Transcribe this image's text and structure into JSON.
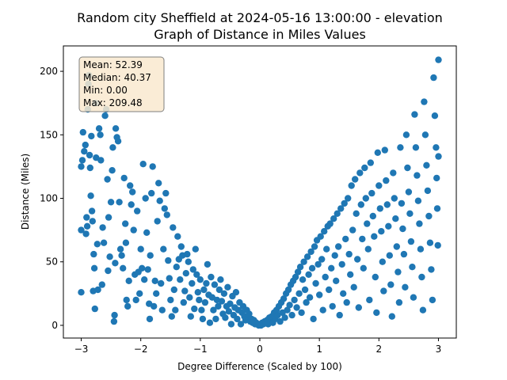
{
  "chart_data": {
    "type": "scatter",
    "title": "Random city Sheffield at 2024-05-16 13:00:00  - elevation",
    "subtitle": "Graph of Distance in Miles Values",
    "xlabel": "Degree Difference (Scaled by 100)",
    "ylabel": "Distance (Miles)",
    "xlim": [
      -3.3,
      3.3
    ],
    "ylim": [
      -10,
      220
    ],
    "xticks": [
      -3,
      -2,
      -1,
      0,
      1,
      2,
      3
    ],
    "yticks": [
      0,
      50,
      100,
      150,
      200
    ],
    "grid": false,
    "marker_color": "#1f77b4",
    "stats_box": {
      "mean": "Mean: 52.39",
      "median": "Median: 40.37",
      "min": "Min: 0.00",
      "max": "Max: 209.48"
    },
    "stats_box_colors": {
      "fill": "#f9e9cf",
      "edge": "#7f7f7f"
    },
    "points": [
      [
        -3.0,
        26
      ],
      [
        -3.0,
        75
      ],
      [
        -3.0,
        125
      ],
      [
        -2.98,
        130
      ],
      [
        -2.97,
        152
      ],
      [
        -2.95,
        137
      ],
      [
        -2.93,
        142
      ],
      [
        -2.92,
        72
      ],
      [
        -2.91,
        85
      ],
      [
        -2.9,
        78
      ],
      [
        -2.89,
        170
      ],
      [
        -2.88,
        190
      ],
      [
        -2.87,
        197
      ],
      [
        -2.86,
        134
      ],
      [
        -2.85,
        124
      ],
      [
        -2.84,
        102
      ],
      [
        -2.83,
        149
      ],
      [
        -2.82,
        90
      ],
      [
        -2.81,
        82
      ],
      [
        -2.8,
        27
      ],
      [
        -2.79,
        56
      ],
      [
        -2.78,
        45
      ],
      [
        -2.77,
        13
      ],
      [
        -2.76,
        175
      ],
      [
        -2.75,
        132
      ],
      [
        -2.73,
        64
      ],
      [
        -2.72,
        28
      ],
      [
        -2.7,
        155
      ],
      [
        -2.68,
        150
      ],
      [
        -2.67,
        130
      ],
      [
        -2.65,
        32
      ],
      [
        -2.64,
        77
      ],
      [
        -2.62,
        65
      ],
      [
        -2.6,
        165
      ],
      [
        -2.58,
        170
      ],
      [
        -2.56,
        115
      ],
      [
        -2.55,
        43
      ],
      [
        -2.54,
        85
      ],
      [
        -2.52,
        54
      ],
      [
        -2.5,
        97
      ],
      [
        -2.48,
        122
      ],
      [
        -2.47,
        140
      ],
      [
        -2.45,
        3
      ],
      [
        -2.44,
        8
      ],
      [
        -2.43,
        49
      ],
      [
        -2.42,
        155
      ],
      [
        -2.4,
        148
      ],
      [
        -2.38,
        145
      ],
      [
        -2.36,
        97
      ],
      [
        -2.34,
        60
      ],
      [
        -2.32,
        55
      ],
      [
        -2.3,
        45
      ],
      [
        -2.28,
        116
      ],
      [
        -2.26,
        80
      ],
      [
        -2.25,
        65
      ],
      [
        -2.24,
        20
      ],
      [
        -2.22,
        15
      ],
      [
        -2.2,
        35
      ],
      [
        -2.18,
        110
      ],
      [
        -2.16,
        95
      ],
      [
        -2.14,
        105
      ],
      [
        -2.12,
        75
      ],
      [
        -2.1,
        40
      ],
      [
        -2.08,
        20
      ],
      [
        -2.06,
        90
      ],
      [
        -2.04,
        42
      ],
      [
        -2.02,
        25
      ],
      [
        -2.0,
        60
      ],
      [
        -1.98,
        45
      ],
      [
        -1.96,
        127
      ],
      [
        -1.94,
        36
      ],
      [
        -1.92,
        100
      ],
      [
        -1.9,
        73
      ],
      [
        -1.88,
        44
      ],
      [
        -1.86,
        17
      ],
      [
        -1.85,
        5
      ],
      [
        -1.84,
        55
      ],
      [
        -1.82,
        104
      ],
      [
        -1.8,
        125
      ],
      [
        -1.78,
        15
      ],
      [
        -1.76,
        35
      ],
      [
        -1.74,
        25
      ],
      [
        -1.72,
        82
      ],
      [
        -1.7,
        112
      ],
      [
        -1.68,
        98
      ],
      [
        -1.66,
        33
      ],
      [
        -1.64,
        12
      ],
      [
        -1.62,
        60
      ],
      [
        -1.6,
        92
      ],
      [
        -1.58,
        104
      ],
      [
        -1.56,
        87
      ],
      [
        -1.54,
        51
      ],
      [
        -1.52,
        37
      ],
      [
        -1.5,
        20
      ],
      [
        -1.48,
        7
      ],
      [
        -1.46,
        77
      ],
      [
        -1.44,
        28
      ],
      [
        -1.42,
        12
      ],
      [
        -1.4,
        46
      ],
      [
        -1.38,
        70
      ],
      [
        -1.36,
        52
      ],
      [
        -1.34,
        36
      ],
      [
        -1.32,
        62
      ],
      [
        -1.3,
        55
      ],
      [
        -1.28,
        18
      ],
      [
        -1.26,
        27
      ],
      [
        -1.24,
        41
      ],
      [
        -1.22,
        56
      ],
      [
        -1.2,
        50
      ],
      [
        -1.18,
        22
      ],
      [
        -1.16,
        7
      ],
      [
        -1.14,
        33
      ],
      [
        -1.12,
        44
      ],
      [
        -1.1,
        13
      ],
      [
        -1.08,
        60
      ],
      [
        -1.06,
        40
      ],
      [
        -1.04,
        26
      ],
      [
        -1.02,
        20
      ],
      [
        -1.0,
        36
      ],
      [
        -0.98,
        12
      ],
      [
        -0.96,
        5
      ],
      [
        -0.94,
        28
      ],
      [
        -0.92,
        18
      ],
      [
        -0.9,
        33
      ],
      [
        -0.88,
        48
      ],
      [
        -0.86,
        24
      ],
      [
        -0.84,
        2
      ],
      [
        -0.82,
        38
      ],
      [
        -0.8,
        22
      ],
      [
        -0.78,
        12
      ],
      [
        -0.76,
        32
      ],
      [
        -0.74,
        5
      ],
      [
        -0.72,
        20
      ],
      [
        -0.7,
        15
      ],
      [
        -0.68,
        28
      ],
      [
        -0.66,
        36
      ],
      [
        -0.64,
        19
      ],
      [
        -0.62,
        9
      ],
      [
        -0.6,
        25
      ],
      [
        -0.58,
        6
      ],
      [
        -0.56,
        15
      ],
      [
        -0.54,
        30
      ],
      [
        -0.52,
        11
      ],
      [
        -0.5,
        17
      ],
      [
        -0.48,
        1
      ],
      [
        -0.46,
        23
      ],
      [
        -0.44,
        8
      ],
      [
        -0.42,
        14
      ],
      [
        -0.4,
        26
      ],
      [
        -0.38,
        5
      ],
      [
        -0.36,
        12
      ],
      [
        -0.34,
        18
      ],
      [
        -0.32,
        1
      ],
      [
        -0.3,
        10
      ],
      [
        -0.28,
        15
      ],
      [
        -0.26,
        7
      ],
      [
        -0.24,
        4
      ],
      [
        -0.22,
        12
      ],
      [
        -0.2,
        6
      ],
      [
        -0.18,
        9
      ],
      [
        -0.16,
        3
      ],
      [
        -0.14,
        5
      ],
      [
        -0.12,
        2
      ],
      [
        -0.1,
        4
      ],
      [
        -0.08,
        1
      ],
      [
        -0.06,
        2
      ],
      [
        -0.04,
        1
      ],
      [
        -0.02,
        0
      ],
      [
        0.0,
        1
      ],
      [
        0.02,
        0
      ],
      [
        0.04,
        2
      ],
      [
        0.06,
        1
      ],
      [
        0.08,
        3
      ],
      [
        0.1,
        2
      ],
      [
        0.12,
        4
      ],
      [
        0.14,
        1
      ],
      [
        0.16,
        6
      ],
      [
        0.18,
        3
      ],
      [
        0.2,
        7
      ],
      [
        0.22,
        2
      ],
      [
        0.24,
        10
      ],
      [
        0.26,
        5
      ],
      [
        0.28,
        12
      ],
      [
        0.3,
        8
      ],
      [
        0.32,
        15
      ],
      [
        0.34,
        3
      ],
      [
        0.36,
        18
      ],
      [
        0.38,
        10
      ],
      [
        0.4,
        21
      ],
      [
        0.42,
        6
      ],
      [
        0.44,
        25
      ],
      [
        0.46,
        12
      ],
      [
        0.48,
        28
      ],
      [
        0.5,
        16
      ],
      [
        0.52,
        32
      ],
      [
        0.54,
        8
      ],
      [
        0.56,
        35
      ],
      [
        0.58,
        20
      ],
      [
        0.6,
        38
      ],
      [
        0.62,
        14
      ],
      [
        0.64,
        42
      ],
      [
        0.66,
        25
      ],
      [
        0.68,
        46
      ],
      [
        0.7,
        10
      ],
      [
        0.72,
        36
      ],
      [
        0.74,
        50
      ],
      [
        0.76,
        28
      ],
      [
        0.78,
        18
      ],
      [
        0.8,
        54
      ],
      [
        0.82,
        40
      ],
      [
        0.84,
        22
      ],
      [
        0.86,
        58
      ],
      [
        0.88,
        45
      ],
      [
        0.9,
        5
      ],
      [
        0.92,
        62
      ],
      [
        0.94,
        33
      ],
      [
        0.96,
        67
      ],
      [
        0.98,
        48
      ],
      [
        1.0,
        24
      ],
      [
        1.02,
        70
      ],
      [
        1.04,
        52
      ],
      [
        1.06,
        12
      ],
      [
        1.08,
        74
      ],
      [
        1.1,
        38
      ],
      [
        1.12,
        60
      ],
      [
        1.14,
        78
      ],
      [
        1.16,
        28
      ],
      [
        1.18,
        80
      ],
      [
        1.2,
        45
      ],
      [
        1.22,
        15
      ],
      [
        1.24,
        84
      ],
      [
        1.26,
        55
      ],
      [
        1.28,
        35
      ],
      [
        1.3,
        88
      ],
      [
        1.32,
        62
      ],
      [
        1.34,
        8
      ],
      [
        1.36,
        92
      ],
      [
        1.38,
        48
      ],
      [
        1.4,
        25
      ],
      [
        1.42,
        96
      ],
      [
        1.44,
        68
      ],
      [
        1.46,
        18
      ],
      [
        1.48,
        100
      ],
      [
        1.5,
        56
      ],
      [
        1.52,
        40
      ],
      [
        1.54,
        110
      ],
      [
        1.56,
        75
      ],
      [
        1.58,
        30
      ],
      [
        1.6,
        115
      ],
      [
        1.62,
        88
      ],
      [
        1.64,
        52
      ],
      [
        1.66,
        14
      ],
      [
        1.68,
        120
      ],
      [
        1.7,
        95
      ],
      [
        1.72,
        68
      ],
      [
        1.74,
        45
      ],
      [
        1.76,
        124
      ],
      [
        1.78,
        100
      ],
      [
        1.8,
        80
      ],
      [
        1.82,
        60
      ],
      [
        1.84,
        20
      ],
      [
        1.86,
        128
      ],
      [
        1.88,
        104
      ],
      [
        1.9,
        86
      ],
      [
        1.92,
        70
      ],
      [
        1.94,
        38
      ],
      [
        1.96,
        10
      ],
      [
        1.98,
        136
      ],
      [
        2.0,
        110
      ],
      [
        2.02,
        92
      ],
      [
        2.04,
        74
      ],
      [
        2.06,
        50
      ],
      [
        2.08,
        27
      ],
      [
        2.1,
        138
      ],
      [
        2.12,
        114
      ],
      [
        2.14,
        95
      ],
      [
        2.16,
        78
      ],
      [
        2.18,
        55
      ],
      [
        2.2,
        32
      ],
      [
        2.22,
        7
      ],
      [
        2.24,
        120
      ],
      [
        2.26,
        100
      ],
      [
        2.28,
        84
      ],
      [
        2.3,
        62
      ],
      [
        2.32,
        42
      ],
      [
        2.34,
        18
      ],
      [
        2.36,
        140
      ],
      [
        2.38,
        96
      ],
      [
        2.4,
        76
      ],
      [
        2.42,
        56
      ],
      [
        2.44,
        30
      ],
      [
        2.46,
        150
      ],
      [
        2.48,
        124
      ],
      [
        2.5,
        105
      ],
      [
        2.52,
        88
      ],
      [
        2.54,
        66
      ],
      [
        2.56,
        46
      ],
      [
        2.58,
        22
      ],
      [
        2.6,
        166
      ],
      [
        2.62,
        140
      ],
      [
        2.64,
        118
      ],
      [
        2.66,
        98
      ],
      [
        2.68,
        80
      ],
      [
        2.7,
        60
      ],
      [
        2.72,
        38
      ],
      [
        2.74,
        12
      ],
      [
        2.76,
        176
      ],
      [
        2.78,
        150
      ],
      [
        2.8,
        126
      ],
      [
        2.82,
        106
      ],
      [
        2.84,
        86
      ],
      [
        2.86,
        65
      ],
      [
        2.88,
        44
      ],
      [
        2.9,
        20
      ],
      [
        2.92,
        195
      ],
      [
        2.94,
        165
      ],
      [
        2.96,
        140
      ],
      [
        2.97,
        116
      ],
      [
        2.98,
        92
      ],
      [
        2.99,
        63
      ],
      [
        3.0,
        133
      ],
      [
        3.0,
        209
      ]
    ]
  }
}
